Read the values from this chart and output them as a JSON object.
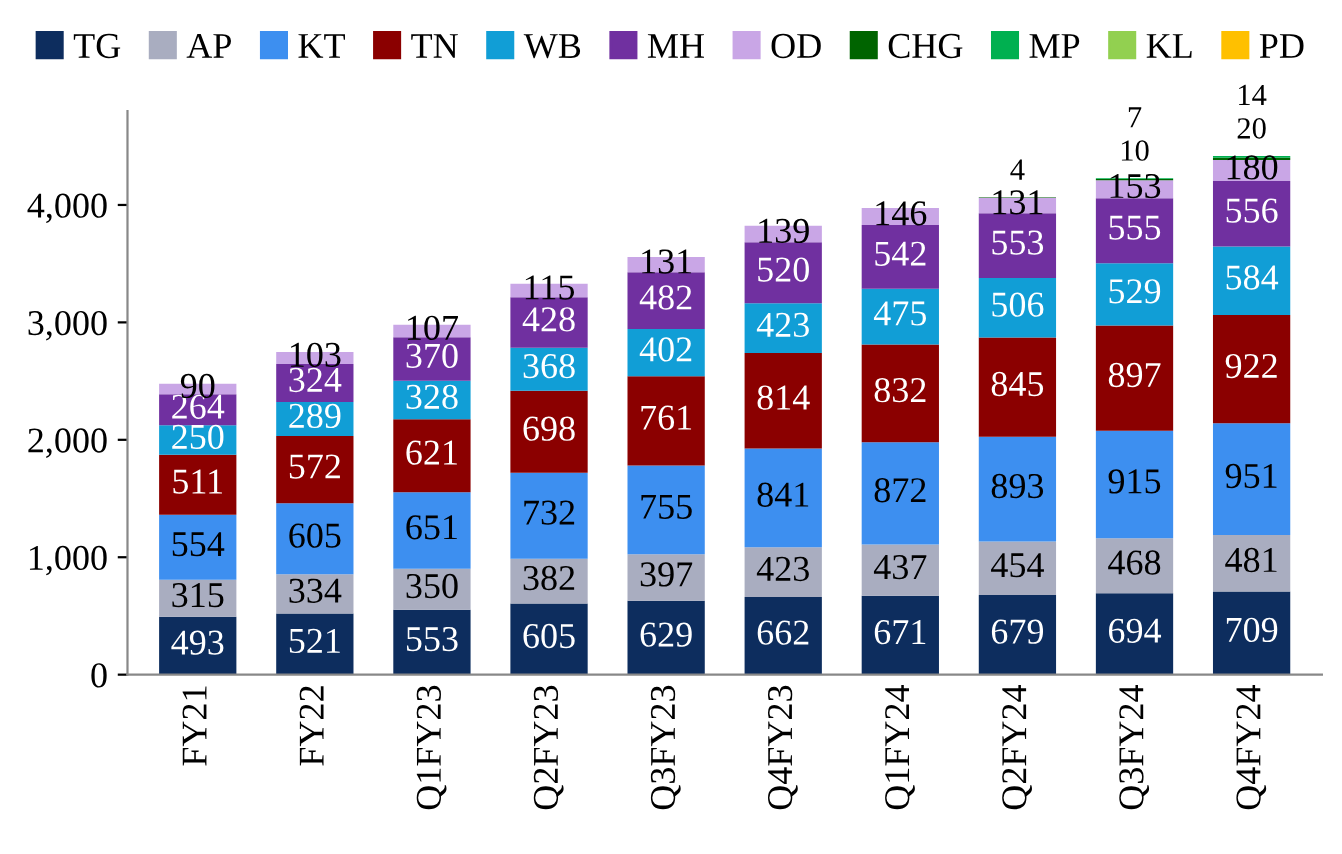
{
  "chart_data": {
    "type": "bar",
    "stacked": true,
    "legend": "top",
    "data_labels": true,
    "grid": false,
    "categories": [
      "FY21",
      "FY22",
      "Q1FY23",
      "Q2FY23",
      "Q3FY23",
      "Q4FY23",
      "Q1FY24",
      "Q2FY24",
      "Q3FY24",
      "Q4FY24"
    ],
    "ylim": [
      0,
      4800
    ],
    "yticks": [
      0,
      {
        "value": 1000,
        "label": "1,000"
      },
      {
        "value": 2000,
        "label": "2,000"
      },
      {
        "value": 3000,
        "label": "3,000"
      },
      {
        "value": 4000,
        "label": "4,000"
      }
    ],
    "series": [
      {
        "name": "TG",
        "color": "#0d2d5e",
        "values": [
          493,
          521,
          553,
          605,
          629,
          662,
          671,
          679,
          694,
          709
        ]
      },
      {
        "name": "AP",
        "color": "#a9adc0",
        "values": [
          315,
          334,
          350,
          382,
          397,
          423,
          437,
          454,
          468,
          481
        ]
      },
      {
        "name": "KT",
        "color": "#3d8ff0",
        "values": [
          554,
          605,
          651,
          732,
          755,
          841,
          872,
          893,
          915,
          951
        ]
      },
      {
        "name": "TN",
        "color": "#8b0000",
        "values": [
          511,
          572,
          621,
          698,
          761,
          814,
          832,
          845,
          897,
          922
        ]
      },
      {
        "name": "WB",
        "color": "#119ed6",
        "values": [
          250,
          289,
          328,
          368,
          402,
          423,
          475,
          506,
          529,
          584
        ]
      },
      {
        "name": "MH",
        "color": "#7030a0",
        "values": [
          264,
          324,
          370,
          428,
          482,
          520,
          542,
          553,
          555,
          556
        ]
      },
      {
        "name": "OD",
        "color": "#c9a6e6",
        "values": [
          90,
          103,
          107,
          115,
          131,
          139,
          146,
          131,
          153,
          180
        ]
      },
      {
        "name": "CHG",
        "color": "#006400",
        "values": [
          null,
          null,
          null,
          null,
          null,
          null,
          null,
          4,
          10,
          20
        ]
      },
      {
        "name": "MP",
        "color": "#00b050",
        "values": [
          null,
          null,
          null,
          null,
          null,
          null,
          null,
          null,
          7,
          14
        ]
      },
      {
        "name": "KL",
        "color": "#92d050",
        "values": [
          null,
          null,
          null,
          null,
          null,
          null,
          null,
          null,
          null,
          null
        ]
      },
      {
        "name": "PD",
        "color": "#ffc000",
        "values": [
          null,
          null,
          null,
          null,
          null,
          null,
          null,
          null,
          null,
          null
        ]
      }
    ]
  }
}
